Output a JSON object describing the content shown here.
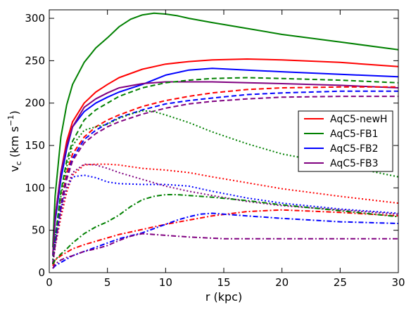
{
  "chart_data": {
    "type": "line",
    "xlabel": "r (kpc)",
    "ylabel_main": "v",
    "ylabel_sub": "c",
    "ylabel_unit": " (km s",
    "ylabel_exp": "−1",
    "ylabel_close": ")",
    "xlim": [
      0,
      30
    ],
    "ylim": [
      0,
      310
    ],
    "xticks": [
      0,
      5,
      10,
      15,
      20,
      25,
      30
    ],
    "yticks": [
      0,
      50,
      100,
      150,
      200,
      250,
      300
    ],
    "grid": false,
    "legend_position": "right",
    "legend": [
      {
        "name": "AqC5-newH",
        "color": "#ff0000"
      },
      {
        "name": "AqC5-FB1",
        "color": "#008000"
      },
      {
        "name": "AqC5-FB2",
        "color": "#0000ff"
      },
      {
        "name": "AqC5-FB3",
        "color": "#800080"
      }
    ],
    "series": [
      {
        "name": "AqC5-newH total",
        "color": "#ff0000",
        "style": "solid",
        "x": [
          0.3,
          0.5,
          1,
          1.5,
          2,
          3,
          4,
          5,
          6,
          8,
          10,
          12,
          14,
          17,
          20,
          25,
          30
        ],
        "y": [
          20,
          65,
          118,
          155,
          178,
          200,
          213,
          222,
          230,
          240,
          246,
          249,
          251,
          252,
          251,
          248,
          243
        ]
      },
      {
        "name": "AqC5-FB1 total",
        "color": "#008000",
        "style": "solid",
        "x": [
          0.3,
          0.5,
          1,
          1.5,
          2,
          3,
          4,
          5,
          6,
          7,
          8,
          9,
          10,
          11,
          12,
          14,
          17,
          20,
          25,
          30
        ],
        "y": [
          30,
          90,
          160,
          198,
          222,
          248,
          265,
          277,
          290,
          299,
          304,
          306,
          305,
          303,
          300,
          295,
          288,
          281,
          272,
          263
        ]
      },
      {
        "name": "AqC5-FB2 total",
        "color": "#0000ff",
        "style": "solid",
        "x": [
          0.3,
          0.5,
          1,
          1.5,
          2,
          3,
          4,
          5,
          6,
          8,
          10,
          12,
          14,
          17,
          20,
          25,
          30
        ],
        "y": [
          20,
          60,
          110,
          146,
          172,
          190,
          200,
          207,
          213,
          222,
          233,
          239,
          241,
          239,
          237,
          234,
          231
        ]
      },
      {
        "name": "AqC5-FB3 total",
        "color": "#800080",
        "style": "solid",
        "x": [
          0.3,
          0.5,
          1,
          1.5,
          2,
          3,
          4,
          5,
          6,
          8,
          10,
          12,
          14,
          17,
          20,
          25,
          30
        ],
        "y": [
          20,
          65,
          118,
          150,
          172,
          195,
          205,
          212,
          218,
          223,
          225,
          225,
          225,
          224,
          223,
          221,
          218
        ]
      },
      {
        "name": "AqC5-newH dm",
        "color": "#ff0000",
        "style": "dashed",
        "x": [
          0.3,
          0.5,
          1,
          1.5,
          2,
          3,
          4,
          5,
          6,
          8,
          10,
          12,
          14,
          17,
          20,
          25,
          30
        ],
        "y": [
          10,
          35,
          80,
          118,
          140,
          160,
          172,
          180,
          186,
          196,
          203,
          208,
          212,
          216,
          218,
          219,
          219
        ]
      },
      {
        "name": "AqC5-FB1 dm",
        "color": "#008000",
        "style": "dashed",
        "x": [
          0.3,
          0.5,
          1,
          1.5,
          2,
          3,
          4,
          5,
          6,
          8,
          10,
          12,
          14,
          17,
          20,
          25,
          30
        ],
        "y": [
          10,
          40,
          95,
          132,
          155,
          180,
          192,
          200,
          208,
          218,
          224,
          227,
          229,
          230,
          229,
          227,
          224
        ]
      },
      {
        "name": "AqC5-FB2 dm",
        "color": "#0000ff",
        "style": "dashed",
        "x": [
          0.3,
          0.5,
          1,
          1.5,
          2,
          3,
          4,
          5,
          6,
          8,
          10,
          12,
          14,
          17,
          20,
          25,
          30
        ],
        "y": [
          10,
          35,
          78,
          112,
          135,
          157,
          168,
          176,
          183,
          192,
          199,
          203,
          206,
          210,
          212,
          214,
          214
        ]
      },
      {
        "name": "AqC5-FB3 dm",
        "color": "#800080",
        "style": "dashed",
        "x": [
          0.3,
          0.5,
          1,
          1.5,
          2,
          3,
          4,
          5,
          6,
          8,
          10,
          12,
          14,
          17,
          20,
          25,
          30
        ],
        "y": [
          10,
          32,
          75,
          110,
          132,
          153,
          164,
          172,
          178,
          187,
          194,
          199,
          202,
          205,
          207,
          208,
          208
        ]
      },
      {
        "name": "AqC5-newH disc",
        "color": "#ff0000",
        "style": "dotted",
        "x": [
          0.3,
          0.5,
          1,
          1.5,
          2,
          3,
          4,
          5,
          6,
          8,
          10,
          12,
          14,
          17,
          20,
          25,
          30
        ],
        "y": [
          10,
          30,
          65,
          95,
          115,
          127,
          128,
          128,
          127,
          123,
          121,
          118,
          113,
          106,
          99,
          90,
          82
        ]
      },
      {
        "name": "AqC5-FB1 disc",
        "color": "#008000",
        "style": "dotted",
        "x": [
          0.3,
          0.5,
          1,
          1.5,
          2,
          3,
          4,
          5,
          6,
          7,
          8,
          9,
          10,
          12,
          14,
          17,
          20,
          25,
          30
        ],
        "y": [
          15,
          40,
          90,
          125,
          150,
          168,
          172,
          175,
          182,
          187,
          191,
          190,
          186,
          177,
          166,
          152,
          140,
          127,
          113
        ]
      },
      {
        "name": "AqC5-FB2 disc",
        "color": "#0000ff",
        "style": "dotted",
        "x": [
          0.3,
          0.5,
          1,
          1.5,
          2,
          3,
          4,
          5,
          6,
          8,
          10,
          12,
          14,
          17,
          20,
          25,
          30
        ],
        "y": [
          10,
          35,
          75,
          100,
          113,
          115,
          112,
          107,
          105,
          104,
          104,
          102,
          96,
          88,
          82,
          75,
          70
        ]
      },
      {
        "name": "AqC5-FB3 disc",
        "color": "#800080",
        "style": "dotted",
        "x": [
          0.3,
          0.5,
          1,
          1.5,
          2,
          3,
          4,
          5,
          6,
          8,
          10,
          12,
          14,
          17,
          20,
          25,
          30
        ],
        "y": [
          10,
          30,
          70,
          100,
          118,
          128,
          127,
          123,
          118,
          110,
          102,
          96,
          91,
          84,
          79,
          74,
          69
        ]
      },
      {
        "name": "AqC5-newH gas",
        "color": "#ff0000",
        "style": "dashdot",
        "x": [
          0.3,
          0.5,
          1,
          1.5,
          2,
          3,
          4,
          5,
          6,
          8,
          10,
          12,
          14,
          17,
          20,
          25,
          30
        ],
        "y": [
          8,
          15,
          20,
          24,
          28,
          33,
          37,
          41,
          45,
          51,
          57,
          62,
          67,
          72,
          74,
          71,
          67
        ]
      },
      {
        "name": "AqC5-FB1 gas",
        "color": "#008000",
        "style": "dashdot",
        "x": [
          0.3,
          0.5,
          1,
          1.5,
          2,
          3,
          4,
          5,
          6,
          7,
          8,
          9,
          10,
          11,
          12,
          14,
          17,
          20,
          25,
          30
        ],
        "y": [
          10,
          15,
          22,
          28,
          35,
          46,
          54,
          60,
          68,
          78,
          86,
          90,
          92,
          92,
          91,
          89,
          85,
          80,
          73,
          66
        ]
      },
      {
        "name": "AqC5-FB2 gas",
        "color": "#0000ff",
        "style": "dashdot",
        "x": [
          0.3,
          0.5,
          1,
          1.5,
          2,
          3,
          4,
          5,
          6,
          8,
          9,
          10,
          11,
          12,
          13,
          14,
          15,
          17,
          20,
          25,
          30
        ],
        "y": [
          5,
          8,
          12,
          16,
          20,
          25,
          30,
          35,
          40,
          47,
          52,
          57,
          62,
          66,
          69,
          70,
          69,
          67,
          64,
          60,
          58
        ]
      },
      {
        "name": "AqC5-FB3 gas",
        "color": "#800080",
        "style": "dashdot",
        "x": [
          0.3,
          0.5,
          1,
          1.5,
          2,
          3,
          4,
          5,
          6,
          7,
          8,
          9,
          10,
          12,
          15,
          20,
          25,
          30
        ],
        "y": [
          5,
          10,
          15,
          18,
          20,
          25,
          28,
          32,
          38,
          43,
          46,
          45,
          44,
          42,
          40,
          40,
          40,
          40
        ]
      }
    ]
  }
}
